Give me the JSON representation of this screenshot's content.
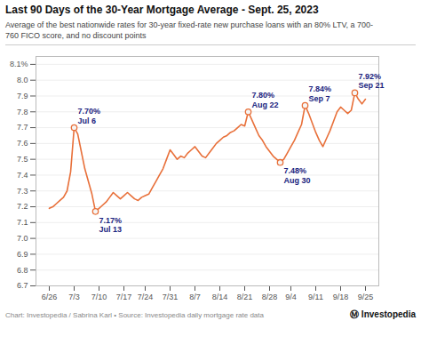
{
  "chart_data": {
    "type": "line",
    "title": "Last 90 Days of the 30-Year Mortgage Average - Sept. 25, 2023",
    "subtitle": "Average of the best nationwide rates for 30-year fixed-rate new purchase loans with an 80% LTV, a 700-\n760 FICO score, and no discount points",
    "footer": "Chart: Investopedia / Sabrina Karl • Source: Investopedia daily mortgage rate data",
    "branding": "Ⓜ Investopedia",
    "color": "#e8703a",
    "grid": true,
    "categories": [
      "6/26",
      null,
      null,
      null,
      null,
      null,
      null,
      "7/3",
      null,
      null,
      null,
      null,
      null,
      null,
      "7/10",
      null,
      null,
      null,
      null,
      null,
      null,
      "7/17",
      null,
      null,
      null,
      null,
      null,
      "7/24",
      null,
      null,
      null,
      null,
      null,
      null,
      "7/31",
      null,
      null,
      null,
      null,
      null,
      null,
      "8/7",
      null,
      null,
      null,
      null,
      null,
      null,
      "8/14",
      null,
      null,
      null,
      null,
      null,
      null,
      "8/21",
      null,
      null,
      null,
      null,
      null,
      null,
      "8/28",
      null,
      null,
      null,
      null,
      null,
      "9/4",
      null,
      null,
      null,
      null,
      null,
      null,
      "9/11",
      null,
      null,
      null,
      null,
      null,
      null,
      "9/18",
      null,
      null,
      null,
      null,
      null,
      null,
      "9/25"
    ],
    "values": [
      7.19,
      7.2,
      7.22,
      7.24,
      7.26,
      7.3,
      7.42,
      7.7,
      7.66,
      7.55,
      7.44,
      7.36,
      7.28,
      7.17,
      7.19,
      7.21,
      7.23,
      7.26,
      7.29,
      7.27,
      7.25,
      7.27,
      7.29,
      7.27,
      7.25,
      7.24,
      7.26,
      7.27,
      7.28,
      7.32,
      7.36,
      7.4,
      7.44,
      7.5,
      7.56,
      7.53,
      7.5,
      7.52,
      7.51,
      7.54,
      7.56,
      7.58,
      7.55,
      7.52,
      7.51,
      7.54,
      7.57,
      7.6,
      7.62,
      7.64,
      7.65,
      7.67,
      7.68,
      7.7,
      7.72,
      7.71,
      7.8,
      7.75,
      7.7,
      7.65,
      7.62,
      7.58,
      7.55,
      7.52,
      7.5,
      7.48,
      7.5,
      7.54,
      7.58,
      7.62,
      7.67,
      7.72,
      7.84,
      7.79,
      7.73,
      7.67,
      7.62,
      7.58,
      7.63,
      7.68,
      7.74,
      7.8,
      7.83,
      7.81,
      7.79,
      7.81,
      7.92,
      7.88,
      7.85,
      7.88
    ],
    "ylim": [
      6.7,
      8.15
    ],
    "yticks": [
      6.7,
      6.8,
      6.9,
      {
        "value": 7.0,
        "label": "7.0"
      },
      7.1,
      7.2,
      7.3,
      7.4,
      7.5,
      7.6,
      7.7,
      7.8,
      7.9,
      {
        "value": 8.0,
        "label": "8.0"
      },
      {
        "value": 8.1,
        "label": "8.1%"
      }
    ],
    "annotations": [
      {
        "text": "7.70%\nJul 6",
        "x": 7,
        "y": 7.7,
        "position": "above",
        "color": "#1a237e"
      },
      {
        "text": "7.17%\nJul 13",
        "x": 13,
        "y": 7.17,
        "position": "below",
        "color": "#1a237e"
      },
      {
        "text": "7.80%\nAug 22",
        "x": 56,
        "y": 7.8,
        "position": "above",
        "color": "#1a237e"
      },
      {
        "text": "7.48%\nAug 30",
        "x": 65,
        "y": 7.48,
        "position": "below",
        "color": "#1a237e"
      },
      {
        "text": "7.84%\nSep 7",
        "x": 72,
        "y": 7.84,
        "position": "above",
        "color": "#1a237e"
      },
      {
        "text": "7.92%\nSep 21",
        "x": 86,
        "y": 7.92,
        "position": "above",
        "color": "#1a237e"
      }
    ]
  }
}
